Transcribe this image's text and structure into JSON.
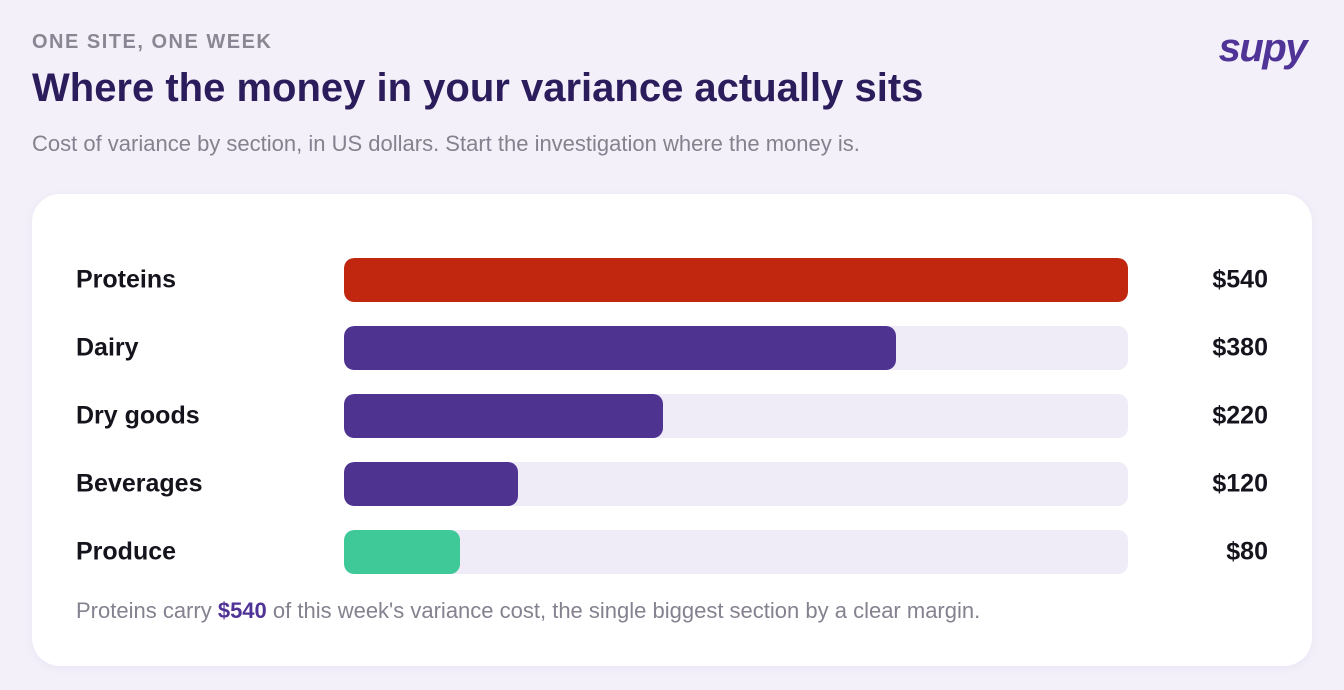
{
  "header": {
    "eyebrow": "ONE SITE, ONE WEEK",
    "title": "Where the money in your variance actually sits",
    "subtitle": "Cost of variance by section, in US dollars. Start the investigation where the money is.",
    "logo": "supy"
  },
  "chart_data": {
    "type": "bar",
    "orientation": "horizontal",
    "categories": [
      "Proteins",
      "Dairy",
      "Dry goods",
      "Beverages",
      "Produce"
    ],
    "values": [
      540,
      380,
      220,
      120,
      80
    ],
    "value_labels": [
      "$540",
      "$380",
      "$220",
      "$120",
      "$80"
    ],
    "xlim": [
      0,
      540
    ],
    "grid": false,
    "bar_colors": [
      "#c1270f",
      "#4f3391",
      "#4f3391",
      "#4f3391",
      "#3fc898"
    ],
    "track_color": "#efecf8"
  },
  "note": {
    "prefix": "Proteins carry ",
    "highlight": "$540",
    "suffix": " of this week's variance cost, the single biggest section by a clear margin."
  },
  "colors": {
    "background": "#f3f0fa",
    "title": "#2b1d5c",
    "accent": "#4f3396"
  }
}
